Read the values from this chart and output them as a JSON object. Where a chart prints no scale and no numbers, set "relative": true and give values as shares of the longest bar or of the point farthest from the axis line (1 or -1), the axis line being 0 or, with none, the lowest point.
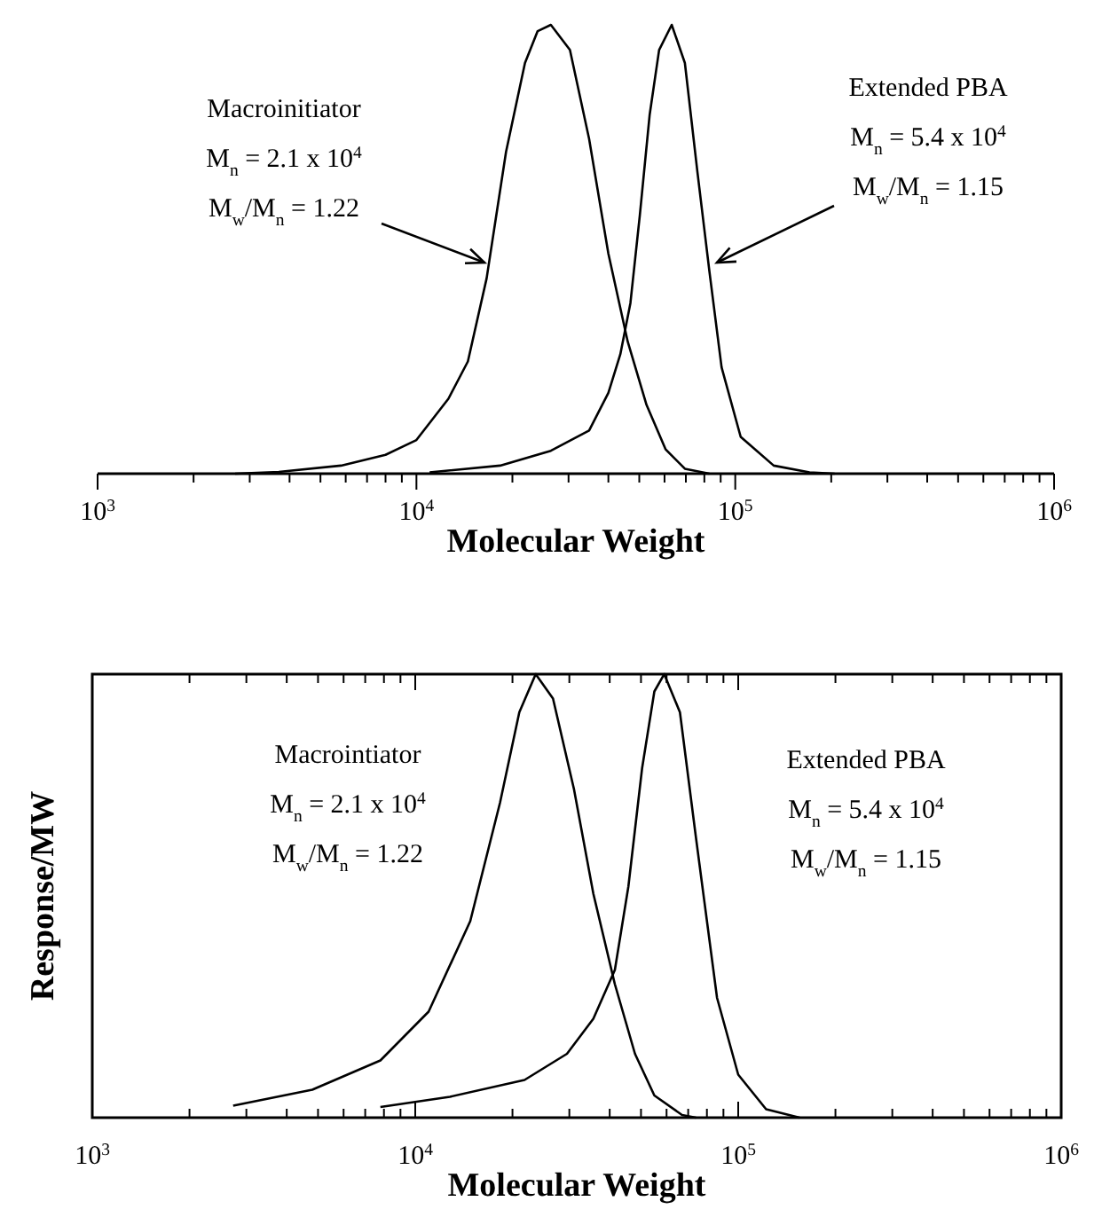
{
  "chart_data": [
    {
      "type": "line",
      "xlabel": "Molecular Weight",
      "relative": true,
      "log": "x",
      "xlim": [
        1000,
        1000000
      ],
      "xticks": [
        {
          "value": 1000,
          "label": "10$^{3}$"
        },
        {
          "value": 10000,
          "label": "10$^{4}$"
        },
        {
          "value": 100000,
          "label": "10$^{5}$"
        },
        {
          "value": 1000000,
          "label": "10$^{6}$"
        }
      ],
      "annotations": [
        "Macroinitiator",
        "M$_{n}$ = 2.1 x 10$^{4}$",
        "M$_{w}$/M$_{n}$ = 1.22",
        "Extended PBA",
        "M$_{n}$ = 5.4 x 10$^{4}$",
        "M$_{w}$/M$_{n}$ = 1.15"
      ],
      "series": [
        {
          "color": "#000000",
          "x": [
            2700,
            3700,
            5800,
            8000,
            10000,
            12600,
            14500,
            16600,
            19100,
            21900,
            24000,
            26400,
            30300,
            34800,
            40000,
            46000,
            52700,
            60500,
            69500,
            83000
          ],
          "values": [
            0,
            0.004,
            0.018,
            0.042,
            0.075,
            0.167,
            0.25,
            0.435,
            0.717,
            0.915,
            0.986,
            1,
            0.944,
            0.746,
            0.49,
            0.294,
            0.153,
            0.054,
            0.011,
            0
          ]
        },
        {
          "color": "#000000",
          "x": [
            11000,
            18300,
            26400,
            34800,
            40000,
            43600,
            46900,
            50200,
            53900,
            57700,
            63200,
            69500,
            76000,
            83000,
            90600,
            104000,
            132000,
            171000,
            205000
          ],
          "values": [
            0.003,
            0.018,
            0.051,
            0.096,
            0.18,
            0.266,
            0.38,
            0.576,
            0.8,
            0.944,
            1,
            0.915,
            0.675,
            0.45,
            0.237,
            0.082,
            0.018,
            0.003,
            0
          ]
        }
      ]
    },
    {
      "type": "line",
      "xlabel": "Molecular Weight",
      "ylabel": "Response/MW",
      "relative": true,
      "log": "x",
      "xlim": [
        1000,
        1000000
      ],
      "xticks": [
        {
          "value": 1000,
          "label": "10$^{3}$"
        },
        {
          "value": 10000,
          "label": "10$^{4}$"
        },
        {
          "value": 100000,
          "label": "10$^{5}$"
        },
        {
          "value": 1000000,
          "label": "10$^{6}$"
        }
      ],
      "annotations": [
        "Macrointiator",
        "M$_{n}$ = 2.1 x 10$^{4}$",
        "M$_{w}$/M$_{n}$ = 1.22",
        "Extended PBA",
        "M$_{n}$ = 5.4 x 10$^{4}$",
        "M$_{w}$/M$_{n}$ = 1.15"
      ],
      "series": [
        {
          "color": "#000000",
          "x": [
            2730,
            4800,
            7800,
            11000,
            14800,
            18300,
            21000,
            23600,
            26700,
            31000,
            35600,
            41500,
            47900,
            55000,
            67000,
            74000
          ],
          "values": [
            0.027,
            0.063,
            0.129,
            0.239,
            0.443,
            0.71,
            0.914,
            1,
            0.945,
            0.741,
            0.505,
            0.301,
            0.144,
            0.05,
            0.006,
            0
          ]
        },
        {
          "color": "#000000",
          "x": [
            7800,
            12800,
            21800,
            29500,
            35600,
            41500,
            45700,
            50400,
            55000,
            59000,
            66000,
            74000,
            86000,
            100000,
            122000,
            155000
          ],
          "values": [
            0.024,
            0.047,
            0.085,
            0.144,
            0.223,
            0.333,
            0.521,
            0.788,
            0.961,
            1,
            0.914,
            0.631,
            0.27,
            0.097,
            0.019,
            0
          ]
        }
      ]
    }
  ]
}
